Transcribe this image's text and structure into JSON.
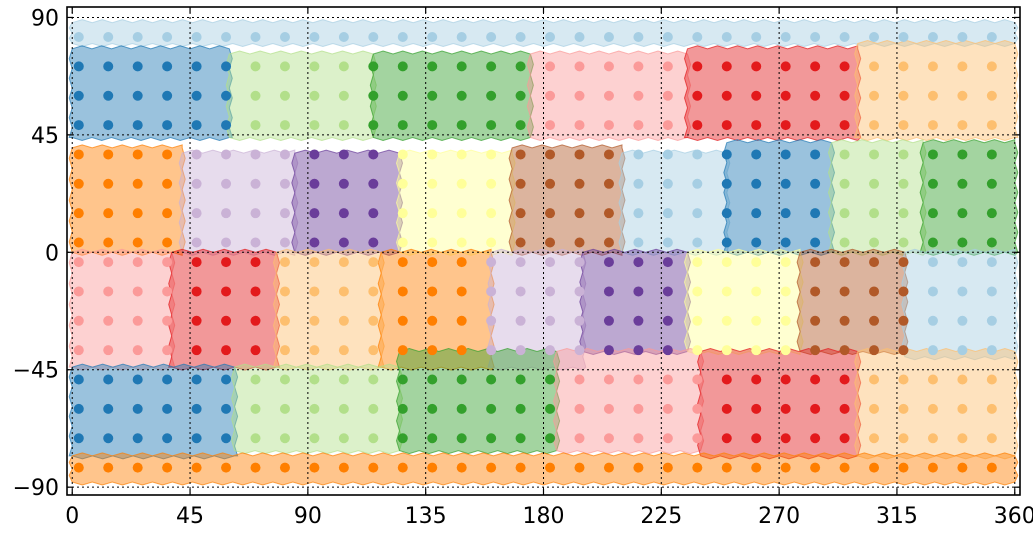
{
  "chart_data": {
    "type": "scatter",
    "title": "",
    "xlabel": "",
    "ylabel": "",
    "xlim": [
      -2,
      362
    ],
    "ylim": [
      -93,
      94
    ],
    "xticks": [
      0,
      45,
      90,
      135,
      180,
      225,
      270,
      315,
      360
    ],
    "xtick_labels": [
      "0",
      "45",
      "90",
      "135",
      "180",
      "225",
      "270",
      "315",
      "360"
    ],
    "yticks": [
      90,
      45,
      0,
      -45,
      -90
    ],
    "ytick_labels": [
      "90",
      "45",
      "0",
      "−45",
      "−90"
    ],
    "grid": true,
    "grid_style": "dotted",
    "palette": [
      "#a6cee3",
      "#1f78b4",
      "#b2df8a",
      "#33a02c",
      "#fb9a99",
      "#e31a1c",
      "#fdbf6f",
      "#ff7f00",
      "#cab2d6",
      "#6a3d9a",
      "#ffff99",
      "#b15928"
    ],
    "point_grid": {
      "x_start": 2.5,
      "x_step": 11.25,
      "x_count": 32,
      "y_values": [
        82.5,
        71.25,
        60,
        48.75,
        37.5,
        26.25,
        15,
        3.75,
        -3.75,
        -15,
        -26.25,
        -37.5,
        -48.75,
        -60,
        -71.25,
        -82.5
      ]
    },
    "regions": [
      {
        "lon": [
          0,
          360
        ],
        "lat": [
          80,
          88
        ],
        "color": 0,
        "points": [
          0,
          0,
          360,
          360
        ]
      },
      {
        "lon": [
          0,
          60
        ],
        "lat": [
          44,
          78
        ],
        "color": 1
      },
      {
        "lon": [
          60,
          115
        ],
        "lat": [
          44,
          76
        ],
        "color": 2
      },
      {
        "lon": [
          115,
          175
        ],
        "lat": [
          44,
          76
        ],
        "color": 3
      },
      {
        "lon": [
          175,
          235
        ],
        "lat": [
          44,
          76
        ],
        "color": 4
      },
      {
        "lon": [
          235,
          300
        ],
        "lat": [
          44,
          78
        ],
        "color": 5
      },
      {
        "lon": [
          300,
          360
        ],
        "lat": [
          44,
          80
        ],
        "color": 6
      },
      {
        "lon": [
          0,
          42
        ],
        "lat": [
          0,
          40
        ],
        "color": 7
      },
      {
        "lon": [
          42,
          85
        ],
        "lat": [
          0,
          38
        ],
        "color": 8
      },
      {
        "lon": [
          85,
          125
        ],
        "lat": [
          0,
          38
        ],
        "color": 9
      },
      {
        "lon": [
          125,
          168
        ],
        "lat": [
          0,
          38
        ],
        "color": 10
      },
      {
        "lon": [
          168,
          210
        ],
        "lat": [
          0,
          40
        ],
        "color": 11
      },
      {
        "lon": [
          210,
          250
        ],
        "lat": [
          0,
          38
        ],
        "color": 0
      },
      {
        "lon": [
          250,
          290
        ],
        "lat": [
          0,
          42
        ],
        "color": 1
      },
      {
        "lon": [
          290,
          325
        ],
        "lat": [
          0,
          42
        ],
        "color": 2
      },
      {
        "lon": [
          325,
          360
        ],
        "lat": [
          0,
          42
        ],
        "color": 3
      },
      {
        "lon": [
          0,
          38
        ],
        "lat": [
          -44,
          0
        ],
        "color": 4
      },
      {
        "lon": [
          38,
          78
        ],
        "lat": [
          -44,
          0
        ],
        "color": 5
      },
      {
        "lon": [
          78,
          118
        ],
        "lat": [
          -44,
          0
        ],
        "color": 6
      },
      {
        "lon": [
          118,
          160
        ],
        "lat": [
          -44,
          0
        ],
        "color": 7
      },
      {
        "lon": [
          160,
          195
        ],
        "lat": [
          -44,
          0
        ],
        "color": 8
      },
      {
        "lon": [
          195,
          235
        ],
        "lat": [
          -38,
          0
        ],
        "color": 9
      },
      {
        "lon": [
          235,
          278
        ],
        "lat": [
          -38,
          0
        ],
        "color": 10
      },
      {
        "lon": [
          278,
          318
        ],
        "lat": [
          -38,
          0
        ],
        "color": 11
      },
      {
        "lon": [
          318,
          360
        ],
        "lat": [
          -40,
          0
        ],
        "color": 0
      },
      {
        "lon": [
          0,
          62
        ],
        "lat": [
          -78,
          -44
        ],
        "color": 1
      },
      {
        "lon": [
          62,
          125
        ],
        "lat": [
          -76,
          -44
        ],
        "color": 2
      },
      {
        "lon": [
          125,
          185
        ],
        "lat": [
          -76,
          -38
        ],
        "color": 3
      },
      {
        "lon": [
          185,
          240
        ],
        "lat": [
          -76,
          -38
        ],
        "color": 4
      },
      {
        "lon": [
          240,
          300
        ],
        "lat": [
          -78,
          -38
        ],
        "color": 5
      },
      {
        "lon": [
          300,
          360
        ],
        "lat": [
          -78,
          -38
        ],
        "color": 6
      },
      {
        "lon": [
          0,
          360
        ],
        "lat": [
          -88,
          -78
        ],
        "color": 7
      }
    ]
  }
}
